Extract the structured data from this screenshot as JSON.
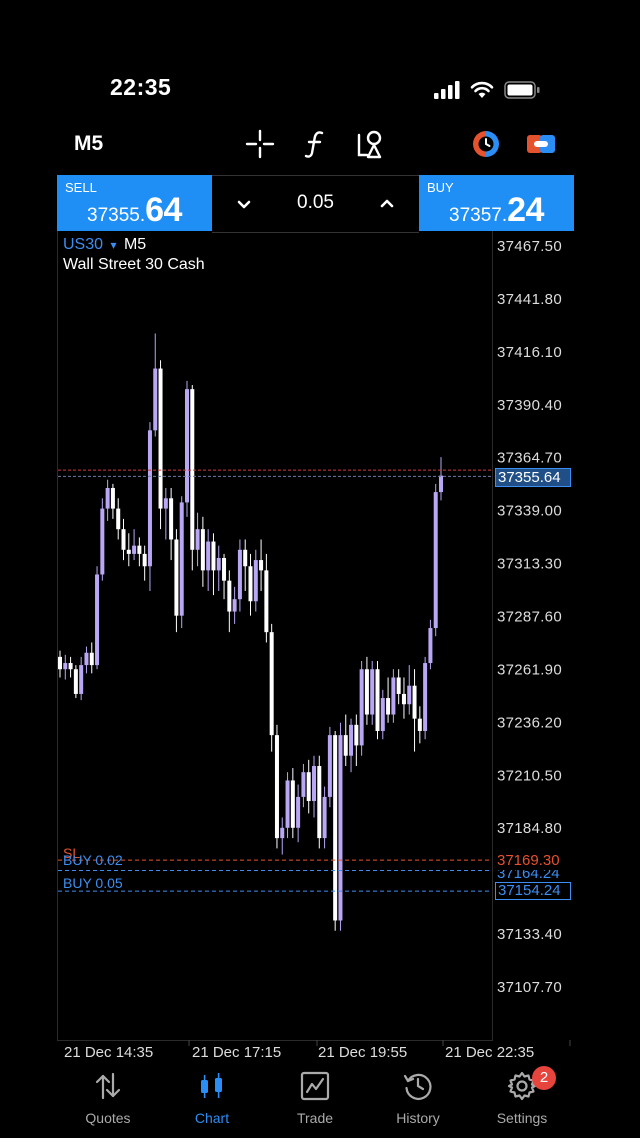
{
  "status_bar": {
    "time": "22:35"
  },
  "toolbar": {
    "timeframe": "M5"
  },
  "trade": {
    "sell_label": "SELL",
    "sell_small": "37355.",
    "sell_big": "64",
    "buy_label": "BUY",
    "buy_small": "37357.",
    "buy_big": "24",
    "volume": "0.05"
  },
  "chart": {
    "symbol": "US30",
    "symbol_arrow": "▾",
    "timeframe": "M5",
    "description": "Wall Street 30 Cash",
    "current_price_tag": "37355.64",
    "sl_price_tag": "37169.30",
    "buy002_price_tag": "37164.24",
    "buy005_price_tag": "37154.24",
    "level_labels": {
      "sl": "SL",
      "buy_002": "BUY 0.02",
      "buy_005": "BUY 0.05"
    },
    "colors": {
      "bull": "#b9a6f5",
      "bear": "#ffffff",
      "sl": "#e5532e",
      "buy": "#3d8ef0",
      "bid_line": "#d23b3b"
    }
  },
  "chart_data": {
    "type": "candlestick",
    "symbol": "US30",
    "timeframe": "M5",
    "title": "",
    "y_ticks": [
      "37467.50",
      "37441.80",
      "37416.10",
      "37390.40",
      "37364.70",
      "37339.00",
      "37313.30",
      "37287.60",
      "37261.90",
      "37236.20",
      "37210.50",
      "37184.80",
      "37133.40",
      "37107.70"
    ],
    "x_ticks": [
      "21 Dec 14:35",
      "21 Dec 17:15",
      "21 Dec 19:55",
      "21 Dec 22:35"
    ],
    "ylim": [
      37095,
      37475
    ],
    "bid": 37355.64,
    "ask": 37357.24,
    "levels": [
      {
        "name": "SL",
        "price": 37169.3
      },
      {
        "name": "BUY 0.02",
        "price": 37164.24
      },
      {
        "name": "BUY 0.05",
        "price": 37154.24
      }
    ],
    "candles": [
      [
        37268,
        37262,
        37271,
        37258
      ],
      [
        37262,
        37265,
        37269,
        37257
      ],
      [
        37265,
        37262,
        37268,
        37258
      ],
      [
        37262,
        37250,
        37264,
        37248
      ],
      [
        37250,
        37264,
        37268,
        37247
      ],
      [
        37264,
        37270,
        37273,
        37260
      ],
      [
        37270,
        37264,
        37275,
        37260
      ],
      [
        37264,
        37308,
        37312,
        37262
      ],
      [
        37308,
        37340,
        37345,
        37305
      ],
      [
        37340,
        37350,
        37354,
        37334
      ],
      [
        37350,
        37340,
        37352,
        37335
      ],
      [
        37340,
        37330,
        37345,
        37325
      ],
      [
        37330,
        37320,
        37335,
        37315
      ],
      [
        37320,
        37318,
        37328,
        37312
      ],
      [
        37318,
        37322,
        37330,
        37315
      ],
      [
        37322,
        37318,
        37326,
        37312
      ],
      [
        37318,
        37312,
        37322,
        37305
      ],
      [
        37312,
        37378,
        37382,
        37300
      ],
      [
        37378,
        37408,
        37425,
        37375
      ],
      [
        37408,
        37340,
        37412,
        37330
      ],
      [
        37340,
        37345,
        37350,
        37325
      ],
      [
        37345,
        37325,
        37350,
        37315
      ],
      [
        37325,
        37288,
        37330,
        37280
      ],
      [
        37288,
        37343,
        37346,
        37282
      ],
      [
        37343,
        37398,
        37402,
        37336
      ],
      [
        37398,
        37320,
        37400,
        37310
      ],
      [
        37320,
        37330,
        37338,
        37312
      ],
      [
        37330,
        37310,
        37336,
        37302
      ],
      [
        37310,
        37324,
        37330,
        37300
      ],
      [
        37324,
        37310,
        37328,
        37298
      ],
      [
        37310,
        37316,
        37322,
        37300
      ],
      [
        37316,
        37305,
        37318,
        37296
      ],
      [
        37305,
        37290,
        37310,
        37280
      ],
      [
        37290,
        37296,
        37302,
        37284
      ],
      [
        37296,
        37320,
        37325,
        37290
      ],
      [
        37320,
        37312,
        37325,
        37300
      ],
      [
        37312,
        37295,
        37318,
        37288
      ],
      [
        37295,
        37315,
        37320,
        37290
      ],
      [
        37315,
        37310,
        37325,
        37300
      ],
      [
        37310,
        37280,
        37318,
        37275
      ],
      [
        37280,
        37230,
        37284,
        37222
      ],
      [
        37230,
        37180,
        37235,
        37175
      ],
      [
        37180,
        37185,
        37190,
        37172
      ],
      [
        37185,
        37208,
        37212,
        37180
      ],
      [
        37208,
        37185,
        37214,
        37180
      ],
      [
        37185,
        37200,
        37206,
        37178
      ],
      [
        37200,
        37212,
        37216,
        37195
      ],
      [
        37212,
        37198,
        37218,
        37192
      ],
      [
        37198,
        37215,
        37220,
        37190
      ],
      [
        37215,
        37180,
        37220,
        37175
      ],
      [
        37180,
        37200,
        37205,
        37175
      ],
      [
        37200,
        37230,
        37234,
        37195
      ],
      [
        37230,
        37140,
        37232,
        37135
      ],
      [
        37140,
        37230,
        37236,
        37135
      ],
      [
        37230,
        37220,
        37240,
        37215
      ],
      [
        37220,
        37235,
        37238,
        37212
      ],
      [
        37235,
        37225,
        37240,
        37215
      ],
      [
        37225,
        37262,
        37266,
        37220
      ],
      [
        37262,
        37240,
        37268,
        37235
      ],
      [
        37240,
        37262,
        37266,
        37235
      ],
      [
        37262,
        37232,
        37266,
        37228
      ],
      [
        37232,
        37248,
        37252,
        37228
      ],
      [
        37248,
        37240,
        37258,
        37236
      ],
      [
        37240,
        37258,
        37262,
        37236
      ],
      [
        37258,
        37250,
        37262,
        37245
      ],
      [
        37250,
        37245,
        37258,
        37238
      ],
      [
        37245,
        37254,
        37264,
        37240
      ],
      [
        37254,
        37238,
        37262,
        37222
      ],
      [
        37238,
        37232,
        37244,
        37226
      ],
      [
        37232,
        37265,
        37268,
        37228
      ],
      [
        37265,
        37282,
        37286,
        37262
      ],
      [
        37282,
        37348,
        37352,
        37278
      ],
      [
        37348,
        37356,
        37365,
        37344
      ]
    ]
  },
  "nav": [
    {
      "label": "Quotes",
      "icon": "quotes-icon"
    },
    {
      "label": "Chart",
      "icon": "chart-icon"
    },
    {
      "label": "Trade",
      "icon": "trade-icon"
    },
    {
      "label": "History",
      "icon": "history-icon"
    },
    {
      "label": "Settings",
      "icon": "settings-icon",
      "badge": "2"
    }
  ]
}
